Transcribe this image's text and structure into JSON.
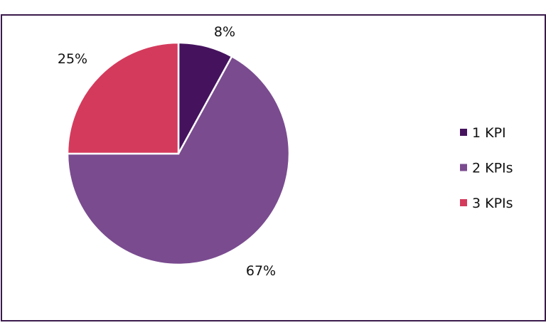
{
  "chart_data": {
    "type": "pie",
    "categories": [
      "1 KPI",
      "2 KPIs",
      "3 KPIs"
    ],
    "values": [
      8,
      67,
      25
    ],
    "labels": [
      "8%",
      "67%",
      "25%"
    ],
    "colors": [
      "#45135e",
      "#7a4b8f",
      "#d43a5c"
    ],
    "start": "top, clockwise",
    "legend_position": "right"
  }
}
